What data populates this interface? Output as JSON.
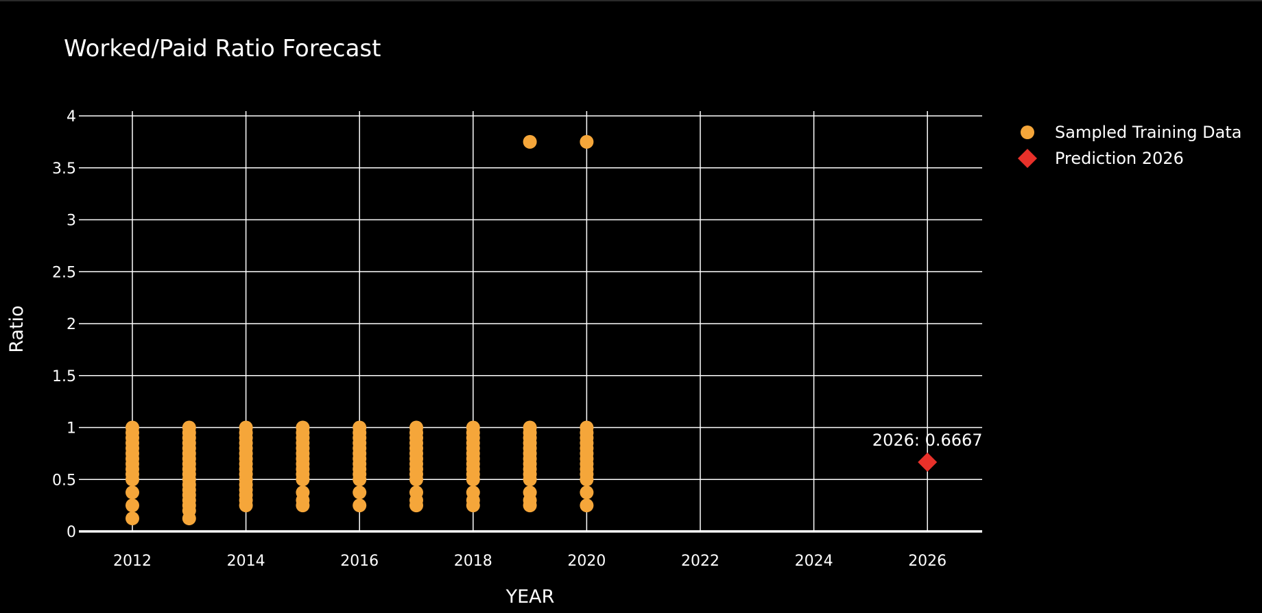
{
  "chart_data": {
    "type": "scatter",
    "title": "Worked/Paid Ratio Forecast",
    "xlabel": "YEAR",
    "ylabel": "Ratio",
    "xlim": [
      2011.1,
      2027
    ],
    "ylim": [
      0,
      4.1
    ],
    "x_ticks": [
      2012,
      2014,
      2016,
      2018,
      2020,
      2022,
      2024,
      2026
    ],
    "y_ticks": [
      0,
      0.5,
      1,
      1.5,
      2,
      2.5,
      3,
      3.5,
      4
    ],
    "y_tick_labels": [
      "0",
      "0.5",
      "1",
      "1.5",
      "2",
      "2.5",
      "3",
      "3.5",
      "4"
    ],
    "grid": true,
    "legend_position": "top-right, outside plot",
    "series": [
      {
        "name": "Sampled Training Data",
        "marker": "circle",
        "color": "#F5A63A",
        "points": [
          {
            "x": 2012,
            "y": 0.125
          },
          {
            "x": 2012,
            "y": 0.25
          },
          {
            "x": 2012,
            "y": 0.375
          },
          {
            "x": 2012,
            "y": 0.5
          },
          {
            "x": 2012,
            "y": 0.55
          },
          {
            "x": 2012,
            "y": 0.6
          },
          {
            "x": 2012,
            "y": 0.65
          },
          {
            "x": 2012,
            "y": 0.7
          },
          {
            "x": 2012,
            "y": 0.75
          },
          {
            "x": 2012,
            "y": 0.8
          },
          {
            "x": 2012,
            "y": 0.85
          },
          {
            "x": 2012,
            "y": 0.9
          },
          {
            "x": 2012,
            "y": 0.95
          },
          {
            "x": 2012,
            "y": 1.0
          },
          {
            "x": 2013,
            "y": 0.125
          },
          {
            "x": 2013,
            "y": 0.2
          },
          {
            "x": 2013,
            "y": 0.25
          },
          {
            "x": 2013,
            "y": 0.3
          },
          {
            "x": 2013,
            "y": 0.35
          },
          {
            "x": 2013,
            "y": 0.4
          },
          {
            "x": 2013,
            "y": 0.45
          },
          {
            "x": 2013,
            "y": 0.5
          },
          {
            "x": 2013,
            "y": 0.55
          },
          {
            "x": 2013,
            "y": 0.6
          },
          {
            "x": 2013,
            "y": 0.65
          },
          {
            "x": 2013,
            "y": 0.7
          },
          {
            "x": 2013,
            "y": 0.75
          },
          {
            "x": 2013,
            "y": 0.8
          },
          {
            "x": 2013,
            "y": 0.85
          },
          {
            "x": 2013,
            "y": 0.9
          },
          {
            "x": 2013,
            "y": 0.95
          },
          {
            "x": 2013,
            "y": 1.0
          },
          {
            "x": 2014,
            "y": 0.25
          },
          {
            "x": 2014,
            "y": 0.3
          },
          {
            "x": 2014,
            "y": 0.35
          },
          {
            "x": 2014,
            "y": 0.4
          },
          {
            "x": 2014,
            "y": 0.45
          },
          {
            "x": 2014,
            "y": 0.5
          },
          {
            "x": 2014,
            "y": 0.55
          },
          {
            "x": 2014,
            "y": 0.6
          },
          {
            "x": 2014,
            "y": 0.65
          },
          {
            "x": 2014,
            "y": 0.7
          },
          {
            "x": 2014,
            "y": 0.75
          },
          {
            "x": 2014,
            "y": 0.8
          },
          {
            "x": 2014,
            "y": 0.85
          },
          {
            "x": 2014,
            "y": 0.9
          },
          {
            "x": 2014,
            "y": 0.95
          },
          {
            "x": 2014,
            "y": 1.0
          },
          {
            "x": 2015,
            "y": 0.25
          },
          {
            "x": 2015,
            "y": 0.3
          },
          {
            "x": 2015,
            "y": 0.375
          },
          {
            "x": 2015,
            "y": 0.5
          },
          {
            "x": 2015,
            "y": 0.55
          },
          {
            "x": 2015,
            "y": 0.6
          },
          {
            "x": 2015,
            "y": 0.65
          },
          {
            "x": 2015,
            "y": 0.7
          },
          {
            "x": 2015,
            "y": 0.75
          },
          {
            "x": 2015,
            "y": 0.8
          },
          {
            "x": 2015,
            "y": 0.85
          },
          {
            "x": 2015,
            "y": 0.9
          },
          {
            "x": 2015,
            "y": 0.95
          },
          {
            "x": 2015,
            "y": 1.0
          },
          {
            "x": 2016,
            "y": 0.25
          },
          {
            "x": 2016,
            "y": 0.375
          },
          {
            "x": 2016,
            "y": 0.5
          },
          {
            "x": 2016,
            "y": 0.55
          },
          {
            "x": 2016,
            "y": 0.6
          },
          {
            "x": 2016,
            "y": 0.65
          },
          {
            "x": 2016,
            "y": 0.7
          },
          {
            "x": 2016,
            "y": 0.75
          },
          {
            "x": 2016,
            "y": 0.8
          },
          {
            "x": 2016,
            "y": 0.85
          },
          {
            "x": 2016,
            "y": 0.9
          },
          {
            "x": 2016,
            "y": 0.95
          },
          {
            "x": 2016,
            "y": 1.0
          },
          {
            "x": 2017,
            "y": 0.25
          },
          {
            "x": 2017,
            "y": 0.3
          },
          {
            "x": 2017,
            "y": 0.375
          },
          {
            "x": 2017,
            "y": 0.5
          },
          {
            "x": 2017,
            "y": 0.55
          },
          {
            "x": 2017,
            "y": 0.6
          },
          {
            "x": 2017,
            "y": 0.65
          },
          {
            "x": 2017,
            "y": 0.7
          },
          {
            "x": 2017,
            "y": 0.75
          },
          {
            "x": 2017,
            "y": 0.8
          },
          {
            "x": 2017,
            "y": 0.85
          },
          {
            "x": 2017,
            "y": 0.9
          },
          {
            "x": 2017,
            "y": 0.95
          },
          {
            "x": 2017,
            "y": 1.0
          },
          {
            "x": 2018,
            "y": 0.25
          },
          {
            "x": 2018,
            "y": 0.3
          },
          {
            "x": 2018,
            "y": 0.375
          },
          {
            "x": 2018,
            "y": 0.5
          },
          {
            "x": 2018,
            "y": 0.55
          },
          {
            "x": 2018,
            "y": 0.6
          },
          {
            "x": 2018,
            "y": 0.65
          },
          {
            "x": 2018,
            "y": 0.7
          },
          {
            "x": 2018,
            "y": 0.75
          },
          {
            "x": 2018,
            "y": 0.8
          },
          {
            "x": 2018,
            "y": 0.85
          },
          {
            "x": 2018,
            "y": 0.9
          },
          {
            "x": 2018,
            "y": 0.95
          },
          {
            "x": 2018,
            "y": 1.0
          },
          {
            "x": 2019,
            "y": 0.25
          },
          {
            "x": 2019,
            "y": 0.3
          },
          {
            "x": 2019,
            "y": 0.375
          },
          {
            "x": 2019,
            "y": 0.5
          },
          {
            "x": 2019,
            "y": 0.55
          },
          {
            "x": 2019,
            "y": 0.6
          },
          {
            "x": 2019,
            "y": 0.65
          },
          {
            "x": 2019,
            "y": 0.7
          },
          {
            "x": 2019,
            "y": 0.75
          },
          {
            "x": 2019,
            "y": 0.8
          },
          {
            "x": 2019,
            "y": 0.85
          },
          {
            "x": 2019,
            "y": 0.9
          },
          {
            "x": 2019,
            "y": 0.95
          },
          {
            "x": 2019,
            "y": 1.0
          },
          {
            "x": 2019,
            "y": 3.75
          },
          {
            "x": 2020,
            "y": 0.25
          },
          {
            "x": 2020,
            "y": 0.375
          },
          {
            "x": 2020,
            "y": 0.5
          },
          {
            "x": 2020,
            "y": 0.55
          },
          {
            "x": 2020,
            "y": 0.6
          },
          {
            "x": 2020,
            "y": 0.65
          },
          {
            "x": 2020,
            "y": 0.7
          },
          {
            "x": 2020,
            "y": 0.75
          },
          {
            "x": 2020,
            "y": 0.8
          },
          {
            "x": 2020,
            "y": 0.85
          },
          {
            "x": 2020,
            "y": 0.9
          },
          {
            "x": 2020,
            "y": 0.95
          },
          {
            "x": 2020,
            "y": 1.0
          },
          {
            "x": 2020,
            "y": 3.75
          }
        ]
      },
      {
        "name": "Prediction 2026",
        "marker": "diamond",
        "color": "#E8312A",
        "points": [
          {
            "x": 2026,
            "y": 0.6667
          }
        ]
      }
    ],
    "annotations": [
      {
        "text": "2026: 0.6667",
        "x": 2026,
        "y": 0.6667
      }
    ]
  }
}
